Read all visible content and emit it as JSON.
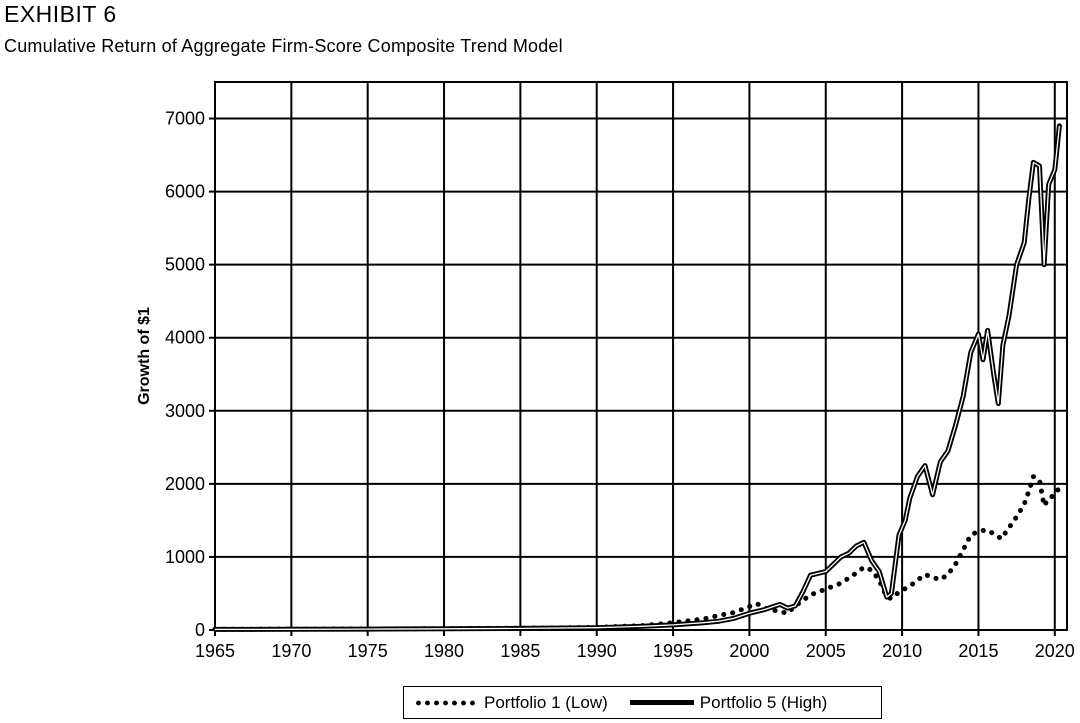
{
  "header": {
    "exhibit": "EXHIBIT 6",
    "title": "Cumulative Return of Aggregate Firm-Score Composite Trend Model"
  },
  "chart_data": {
    "type": "line",
    "title": "Cumulative Return of Aggregate Firm-Score Composite Trend Model",
    "xlabel": "",
    "ylabel": "Growth of $1",
    "xlim": [
      1965,
      2020.8
    ],
    "ylim": [
      0,
      7500
    ],
    "x_ticks": [
      1965,
      1970,
      1975,
      1980,
      1985,
      1990,
      1995,
      2000,
      2005,
      2010,
      2015,
      2020
    ],
    "y_ticks": [
      0,
      1000,
      2000,
      3000,
      4000,
      5000,
      6000,
      7000
    ],
    "grid": true,
    "legend_position": "bottom-center",
    "series": [
      {
        "name": "Portfolio 1 (Low)",
        "style": "dotted",
        "color": "#000000",
        "x": [
          1965,
          1970,
          1975,
          1980,
          1985,
          1990,
          1993,
          1995,
          1997,
          1998,
          1999,
          2000,
          2000.5,
          2001,
          2002,
          2002.5,
          2003,
          2004,
          2005,
          2006,
          2007,
          2007.5,
          2008,
          2008.5,
          2009,
          2009.3,
          2009.8,
          2010.5,
          2011,
          2011.5,
          2012,
          2012.5,
          2013,
          2013.5,
          2014,
          2014.5,
          2015,
          2015.5,
          2016,
          2016.5,
          2017,
          2017.5,
          2018,
          2018.3,
          2018.6,
          2019,
          2019.3,
          2019.6,
          2020,
          2020.3
        ],
        "y": [
          10,
          12,
          14,
          18,
          25,
          35,
          60,
          100,
          150,
          200,
          240,
          320,
          360,
          300,
          250,
          230,
          330,
          480,
          560,
          640,
          780,
          860,
          820,
          680,
          450,
          430,
          520,
          600,
          680,
          760,
          720,
          690,
          760,
          900,
          1100,
          1300,
          1350,
          1370,
          1320,
          1250,
          1400,
          1550,
          1720,
          1900,
          2100,
          2050,
          1700,
          1800,
          1850,
          1950
        ]
      },
      {
        "name": "Portfolio 5 (High)",
        "style": "solid",
        "color": "#000000",
        "x": [
          1965,
          1970,
          1975,
          1980,
          1985,
          1990,
          1993,
          1995,
          1997,
          1998,
          1999,
          2000,
          2001,
          2002,
          2002.5,
          2003,
          2003.5,
          2004,
          2005,
          2005.5,
          2006,
          2006.5,
          2007,
          2007.5,
          2008,
          2008.5,
          2009,
          2009.3,
          2009.8,
          2010.2,
          2010.5,
          2011,
          2011.5,
          2012,
          2012.5,
          2013,
          2013.5,
          2014,
          2014.5,
          2015,
          2015.3,
          2015.6,
          2016,
          2016.3,
          2016.6,
          2017,
          2017.5,
          2018,
          2018.3,
          2018.6,
          2019,
          2019.3,
          2019.6,
          2020,
          2020.3
        ],
        "y": [
          8,
          10,
          12,
          16,
          22,
          32,
          50,
          70,
          100,
          120,
          160,
          230,
          280,
          350,
          300,
          330,
          520,
          750,
          800,
          900,
          1000,
          1050,
          1150,
          1200,
          950,
          800,
          450,
          500,
          1300,
          1500,
          1800,
          2100,
          2250,
          1850,
          2300,
          2450,
          2800,
          3200,
          3800,
          4050,
          3700,
          4100,
          3500,
          3100,
          3900,
          4300,
          5000,
          5300,
          5900,
          6400,
          6350,
          5000,
          6100,
          6300,
          6900
        ]
      }
    ]
  }
}
